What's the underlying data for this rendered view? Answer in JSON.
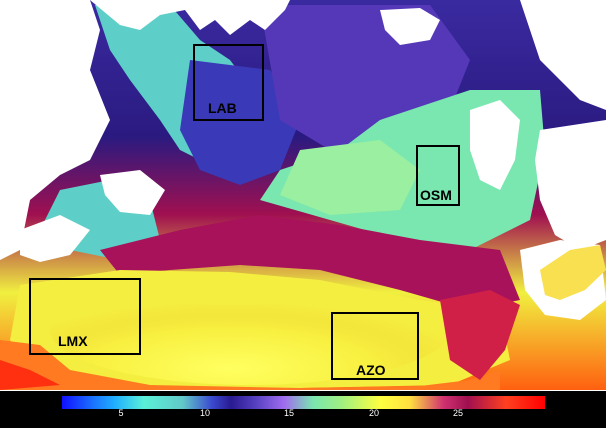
{
  "regions": [
    {
      "id": "lab",
      "label": "LAB"
    },
    {
      "id": "osm",
      "label": "OSM"
    },
    {
      "id": "lmx",
      "label": "LMX"
    },
    {
      "id": "azo",
      "label": "AZO"
    }
  ],
  "colorbar": {
    "ticks": [
      "5",
      "10",
      "15",
      "20",
      "25"
    ],
    "min_color": "#1010ff",
    "max_color": "#ff0000"
  },
  "colors": {
    "cold": "#2a1a90",
    "cool": "#62c9c9",
    "mild": "#7ae6b0",
    "warm": "#ffff40",
    "hot": "#ff4020",
    "deep_red": "#a01050",
    "land": "#ffffff",
    "box": "#000000"
  }
}
